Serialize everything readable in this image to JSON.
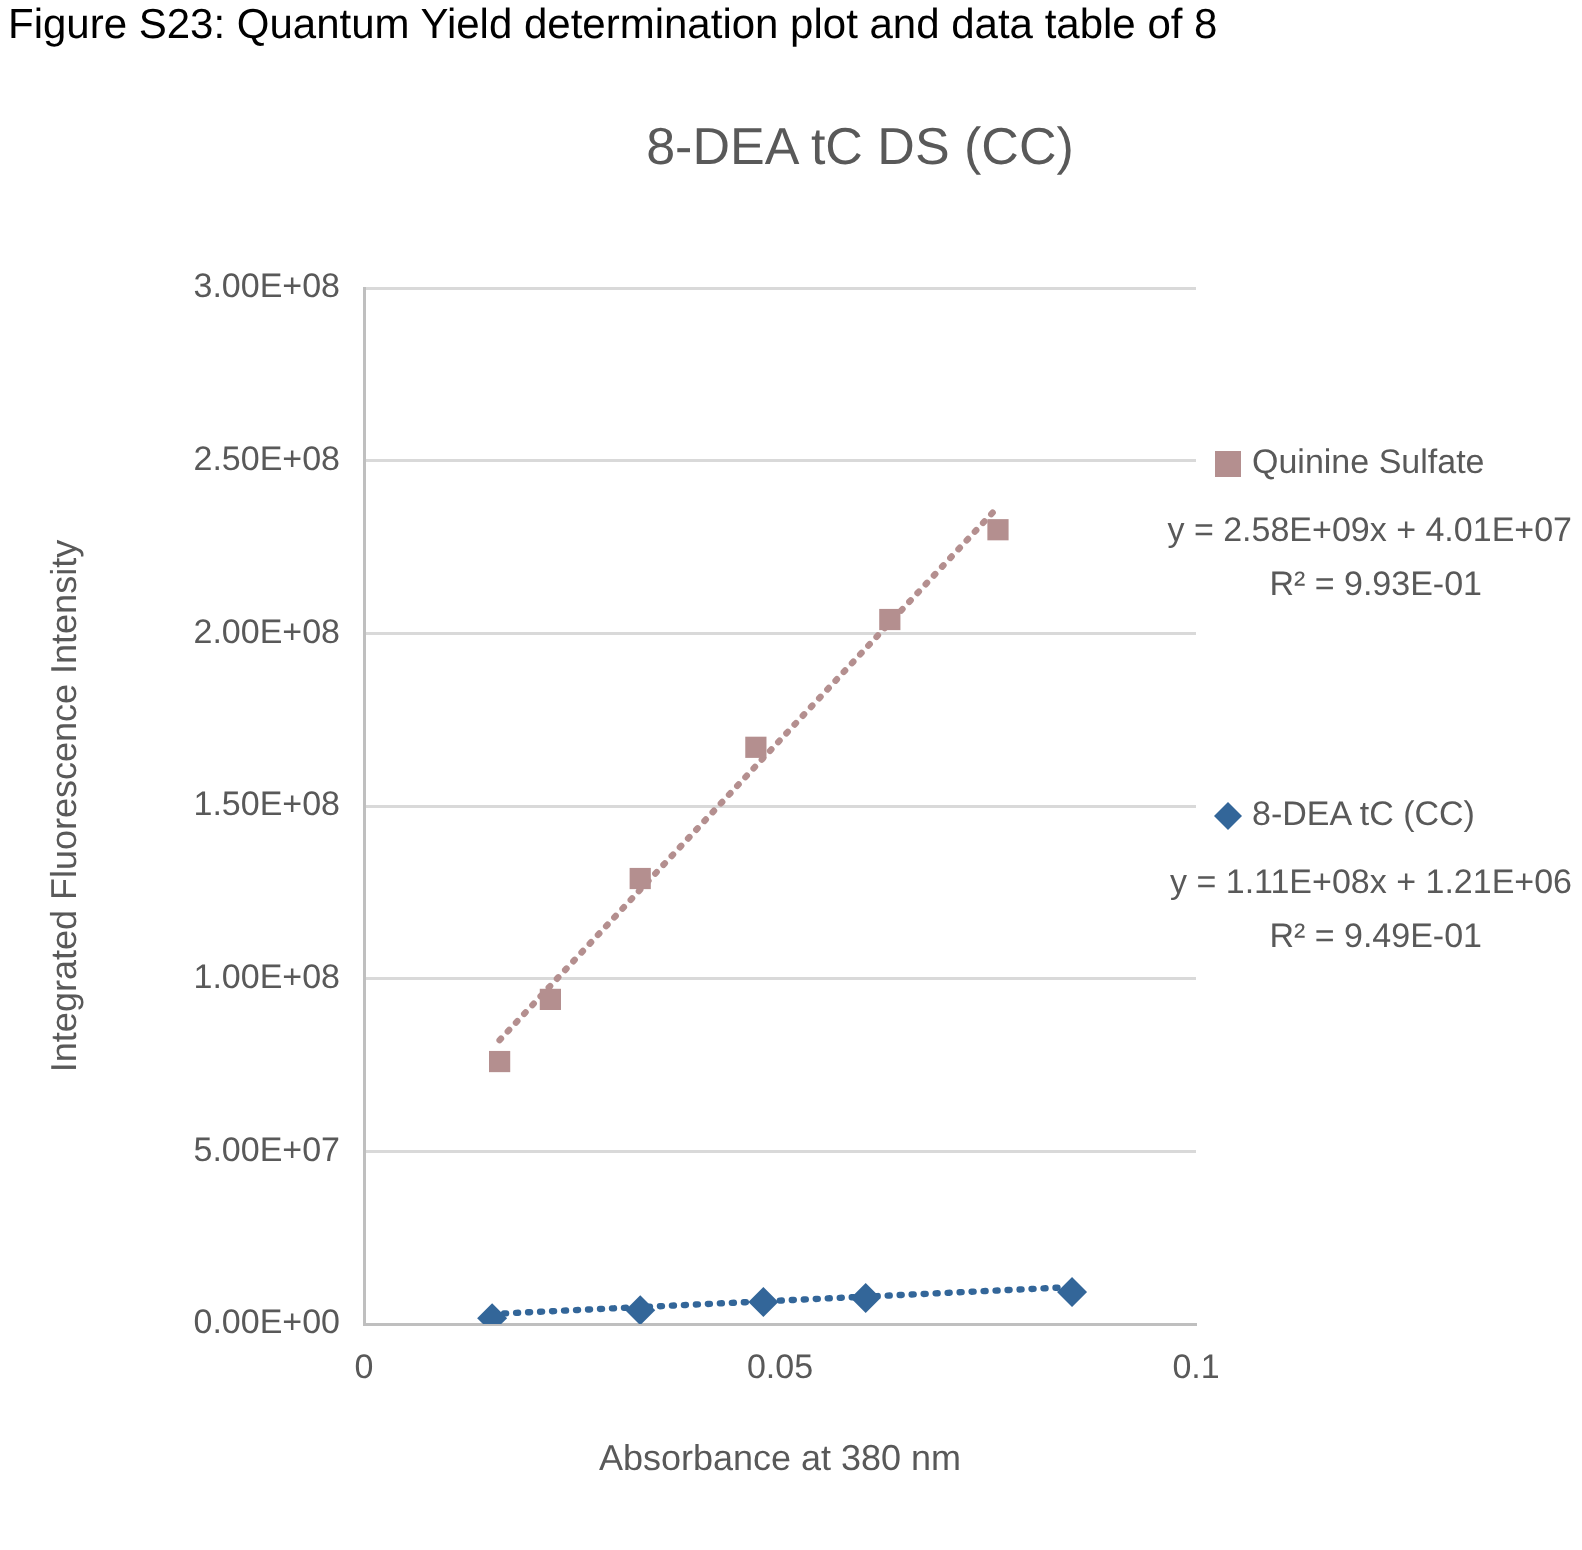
{
  "chart_data": {
    "type": "scatter",
    "title": "8-DEA tC DS (CC)",
    "xlabel": "Absorbance at 380 nm",
    "ylabel": "Integrated Fluorescence Intensity",
    "xlim": [
      0,
      0.1
    ],
    "xticks": [
      0,
      0.05,
      0.1
    ],
    "ylim": [
      0,
      300000000
    ],
    "yticks": [
      {
        "value": 0,
        "label": "0.00E+00"
      },
      {
        "value": 50000000,
        "label": "5.00E+07"
      },
      {
        "value": 100000000,
        "label": "1.00E+08"
      },
      {
        "value": 150000000,
        "label": "1.50E+08"
      },
      {
        "value": 200000000,
        "label": "2.00E+08"
      },
      {
        "value": 250000000,
        "label": "2.50E+08"
      },
      {
        "value": 300000000,
        "label": "3.00E+08"
      }
    ],
    "grid": "y",
    "legend": "right",
    "series": [
      {
        "name": "Quinine Sulfate",
        "type": "scatter",
        "marker": "square",
        "color": "#b48f8f",
        "x": [
          0.0163,
          0.0224,
          0.0332,
          0.0471,
          0.0632,
          0.0762
        ],
        "values": [
          76000000,
          94000000,
          129000000,
          167000000,
          204000000,
          230000000
        ]
      },
      {
        "name": "8-DEA tC (CC)",
        "type": "scatter",
        "marker": "diamond",
        "color": "#336699",
        "x": [
          0.0154,
          0.0332,
          0.048,
          0.0603,
          0.0851
        ],
        "values": [
          1700000,
          4000000,
          6400000,
          7500000,
          9300000
        ]
      },
      {
        "type": "line",
        "line_style": "dotted",
        "color": "#b48f8f",
        "x": [
          0.0163,
          0.0762
        ],
        "values": [
          82200000,
          236600000
        ]
      },
      {
        "type": "line",
        "line_style": "dotted",
        "color": "#336699",
        "x": [
          0.0154,
          0.0851
        ],
        "values": [
          2900000,
          10700000
        ]
      }
    ],
    "annotations": [
      "Figure S23: Quantum Yield determination plot and data table of 8",
      "y = 2.58E+09x + 4.01E+07",
      "R² = 9.93E-01",
      "y = 1.11E+08x + 1.21E+06",
      "R² = 9.49E-01"
    ]
  }
}
